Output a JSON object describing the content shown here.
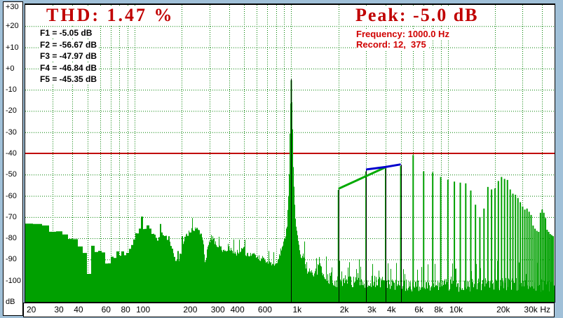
{
  "header": {
    "thd_label": "THD: 1.47 %",
    "peak_label": "Peak: -5.0 dB",
    "frequency_label": "Frequency: 1000.0 Hz",
    "record_label": "Record: 12,  375",
    "harmonic_readouts": [
      "F1 = -5.05 dB",
      "F2 = -56.67 dB",
      "F3 = -47.97 dB",
      "F4 = -46.84 dB",
      "F5 = -45.35 dB"
    ]
  },
  "axes": {
    "y_unit": "dB",
    "x_unit": "Hz",
    "y_ticks": [
      {
        "label": "+30",
        "db": 30
      },
      {
        "label": "+20",
        "db": 20
      },
      {
        "label": "+10",
        "db": 10
      },
      {
        "label": "+0",
        "db": 0
      },
      {
        "label": "-10",
        "db": -10
      },
      {
        "label": "-20",
        "db": -20
      },
      {
        "label": "-30",
        "db": -30
      },
      {
        "label": "-40",
        "db": -40
      },
      {
        "label": "-50",
        "db": -50
      },
      {
        "label": "-60",
        "db": -60
      },
      {
        "label": "-70",
        "db": -70
      },
      {
        "label": "-80",
        "db": -80
      },
      {
        "label": "-90",
        "db": -90
      },
      {
        "label": "-100",
        "db": -100
      },
      {
        "label": "dB",
        "db": -110
      }
    ],
    "x_ticks": [
      {
        "label": "20",
        "f": 20
      },
      {
        "label": "30",
        "f": 30
      },
      {
        "label": "40",
        "f": 40
      },
      {
        "label": "60",
        "f": 60
      },
      {
        "label": "80",
        "f": 80
      },
      {
        "label": "100",
        "f": 100
      },
      {
        "label": "200",
        "f": 200
      },
      {
        "label": "300",
        "f": 300
      },
      {
        "label": "400",
        "f": 400
      },
      {
        "label": "600",
        "f": 600
      },
      {
        "label": "1k",
        "f": 1000
      },
      {
        "label": "2k",
        "f": 2000
      },
      {
        "label": "3k",
        "f": 3000
      },
      {
        "label": "4k",
        "f": 4000
      },
      {
        "label": "6k",
        "f": 6000
      },
      {
        "label": "8k",
        "f": 8000
      },
      {
        "label": "10k",
        "f": 10000
      },
      {
        "label": "20k",
        "f": 20000
      },
      {
        "label": "30k",
        "f": 30000
      },
      {
        "label": "Hz",
        "f": null
      }
    ]
  },
  "colors": {
    "background": "#a0c0d8",
    "plot_bg": "#ffffff",
    "grid": "#008000",
    "spectrum": "#00a000",
    "marker": "#000000",
    "threshold": "#c00000",
    "title": "#c00000",
    "info": "#d00000",
    "overlay_green": "#00aa00",
    "overlay_blue": "#0000cc"
  },
  "chart_data": {
    "type": "bar",
    "title": "THD: 1.47 %",
    "xlabel": "Hz",
    "ylabel": "dB",
    "x_scale": "log",
    "x_range_hz": [
      20,
      48000
    ],
    "y_range_db": [
      -110,
      30
    ],
    "grid": true,
    "thd_percent": 1.47,
    "peak_db": -5.0,
    "fundamental_hz": 1000.0,
    "record": "12,  375",
    "threshold_line_db": -40,
    "harmonic_levels_db": {
      "F1": -5.05,
      "F2": -56.67,
      "F3": -47.97,
      "F4": -46.84,
      "F5": -45.35
    },
    "marked_harmonics": [
      [
        1,
        -5.05
      ],
      [
        2,
        -56.67
      ],
      [
        3,
        -47.97
      ],
      [
        4,
        -46.84
      ],
      [
        5,
        -45.35
      ]
    ],
    "harmonics": [
      [
        1,
        -5.5
      ],
      [
        2,
        -57.2
      ],
      [
        3,
        -48.5
      ],
      [
        4,
        -47.3
      ],
      [
        5,
        -45.9
      ],
      [
        6,
        -40.8
      ],
      [
        7,
        -48.5
      ],
      [
        8,
        -48.9
      ],
      [
        9,
        -51.1
      ],
      [
        10,
        -52.4
      ],
      [
        11,
        -53.3
      ],
      [
        12,
        -53.8
      ],
      [
        13,
        -54.1
      ],
      [
        14,
        -57.5
      ],
      [
        15,
        -64.2
      ],
      [
        16,
        -70
      ],
      [
        17,
        -66
      ],
      [
        18,
        -55.8
      ],
      [
        19,
        -57
      ],
      [
        20,
        -56.5
      ],
      [
        21,
        -53
      ],
      [
        22,
        -51.1
      ],
      [
        23,
        -52
      ],
      [
        24,
        -52.5
      ],
      [
        25,
        -57
      ],
      [
        26,
        -59
      ],
      [
        27,
        -59.5
      ],
      [
        28,
        -61
      ],
      [
        29,
        -63
      ],
      [
        30,
        -65
      ],
      [
        31,
        -66.5
      ],
      [
        32,
        -66
      ],
      [
        33,
        -67.5
      ],
      [
        34,
        -69
      ],
      [
        35,
        -74
      ],
      [
        36,
        -75.5
      ],
      [
        37,
        -76.5
      ],
      [
        38,
        -77
      ],
      [
        39,
        -68
      ],
      [
        40,
        -66.5
      ],
      [
        41,
        -68
      ],
      [
        42,
        -70.5
      ],
      [
        43,
        -76
      ],
      [
        44,
        -77
      ],
      [
        45,
        -78
      ],
      [
        46,
        -78.5
      ],
      [
        47,
        -79
      ]
    ],
    "overlay_green_line": [
      [
        2000,
        -56.67
      ],
      [
        4000,
        -46.5
      ]
    ],
    "overlay_blue_line": [
      [
        3000,
        -47.6
      ],
      [
        4000,
        -46.4
      ],
      [
        5000,
        -45.2
      ]
    ],
    "noise_envelope": [
      [
        20,
        -73
      ],
      [
        26,
        -73.5
      ],
      [
        30,
        -75.5
      ],
      [
        34,
        -77.5
      ],
      [
        38,
        -79.5
      ],
      [
        42,
        -81.5
      ],
      [
        46,
        -84
      ],
      [
        49,
        -88
      ],
      [
        51,
        -96
      ],
      [
        54,
        -89
      ],
      [
        58,
        -86.5
      ],
      [
        64,
        -88
      ],
      [
        68,
        -93
      ],
      [
        72,
        -90
      ],
      [
        78,
        -87
      ],
      [
        85,
        -87.5
      ],
      [
        92,
        -86
      ],
      [
        97,
        -82
      ],
      [
        103,
        -77
      ],
      [
        112,
        -75
      ],
      [
        122,
        -74.7
      ],
      [
        130,
        -77
      ],
      [
        138,
        -80.5
      ],
      [
        148,
        -78.5
      ],
      [
        158,
        -78.5
      ],
      [
        168,
        -81
      ],
      [
        178,
        -88
      ],
      [
        188,
        -92
      ],
      [
        200,
        -85
      ],
      [
        213,
        -78
      ],
      [
        228,
        -76.5
      ],
      [
        243,
        -75
      ],
      [
        258,
        -76.5
      ],
      [
        272,
        -79
      ],
      [
        283,
        -93
      ],
      [
        295,
        -83
      ],
      [
        308,
        -79.5
      ],
      [
        322,
        -81
      ],
      [
        338,
        -84.5
      ],
      [
        358,
        -85
      ],
      [
        378,
        -86.5
      ],
      [
        398,
        -83.5
      ],
      [
        420,
        -85.5
      ],
      [
        448,
        -87
      ],
      [
        468,
        -86
      ],
      [
        490,
        -83.5
      ],
      [
        520,
        -88
      ],
      [
        558,
        -87.5
      ],
      [
        600,
        -89
      ],
      [
        648,
        -89.5
      ],
      [
        700,
        -91
      ],
      [
        748,
        -92
      ],
      [
        800,
        -92
      ],
      [
        848,
        -87
      ],
      [
        880,
        -84
      ],
      [
        912,
        -80
      ],
      [
        938,
        -74
      ],
      [
        958,
        -62
      ],
      [
        975,
        -42
      ],
      [
        990,
        -16
      ],
      [
        1000,
        -6
      ],
      [
        1012,
        -16
      ],
      [
        1028,
        -42
      ],
      [
        1048,
        -62
      ],
      [
        1072,
        -74
      ],
      [
        1100,
        -80
      ],
      [
        1130,
        -86
      ],
      [
        1160,
        -89
      ],
      [
        1200,
        -88
      ],
      [
        1255,
        -94
      ],
      [
        1350,
        -96
      ],
      [
        1500,
        -94
      ],
      [
        1700,
        -98
      ],
      [
        2000,
        -100
      ],
      [
        2600,
        -100
      ],
      [
        3300,
        -101
      ],
      [
        4200,
        -101
      ],
      [
        5500,
        -102
      ],
      [
        8000,
        -102
      ],
      [
        12000,
        -102
      ],
      [
        18000,
        -101
      ],
      [
        26000,
        -101
      ],
      [
        36000,
        -102
      ],
      [
        48000,
        -102
      ]
    ],
    "grid_frequencies_hz": [
      30,
      40,
      50,
      60,
      70,
      80,
      90,
      100,
      200,
      300,
      400,
      500,
      600,
      700,
      800,
      900,
      1000,
      2000,
      3000,
      4000,
      5000,
      6000,
      7000,
      8000,
      9000,
      10000,
      20000,
      30000,
      40000
    ],
    "grid_levels_db": [
      20,
      10,
      0,
      -10,
      -20,
      -30,
      -50,
      -60,
      -70,
      -80,
      -90,
      -100
    ]
  }
}
